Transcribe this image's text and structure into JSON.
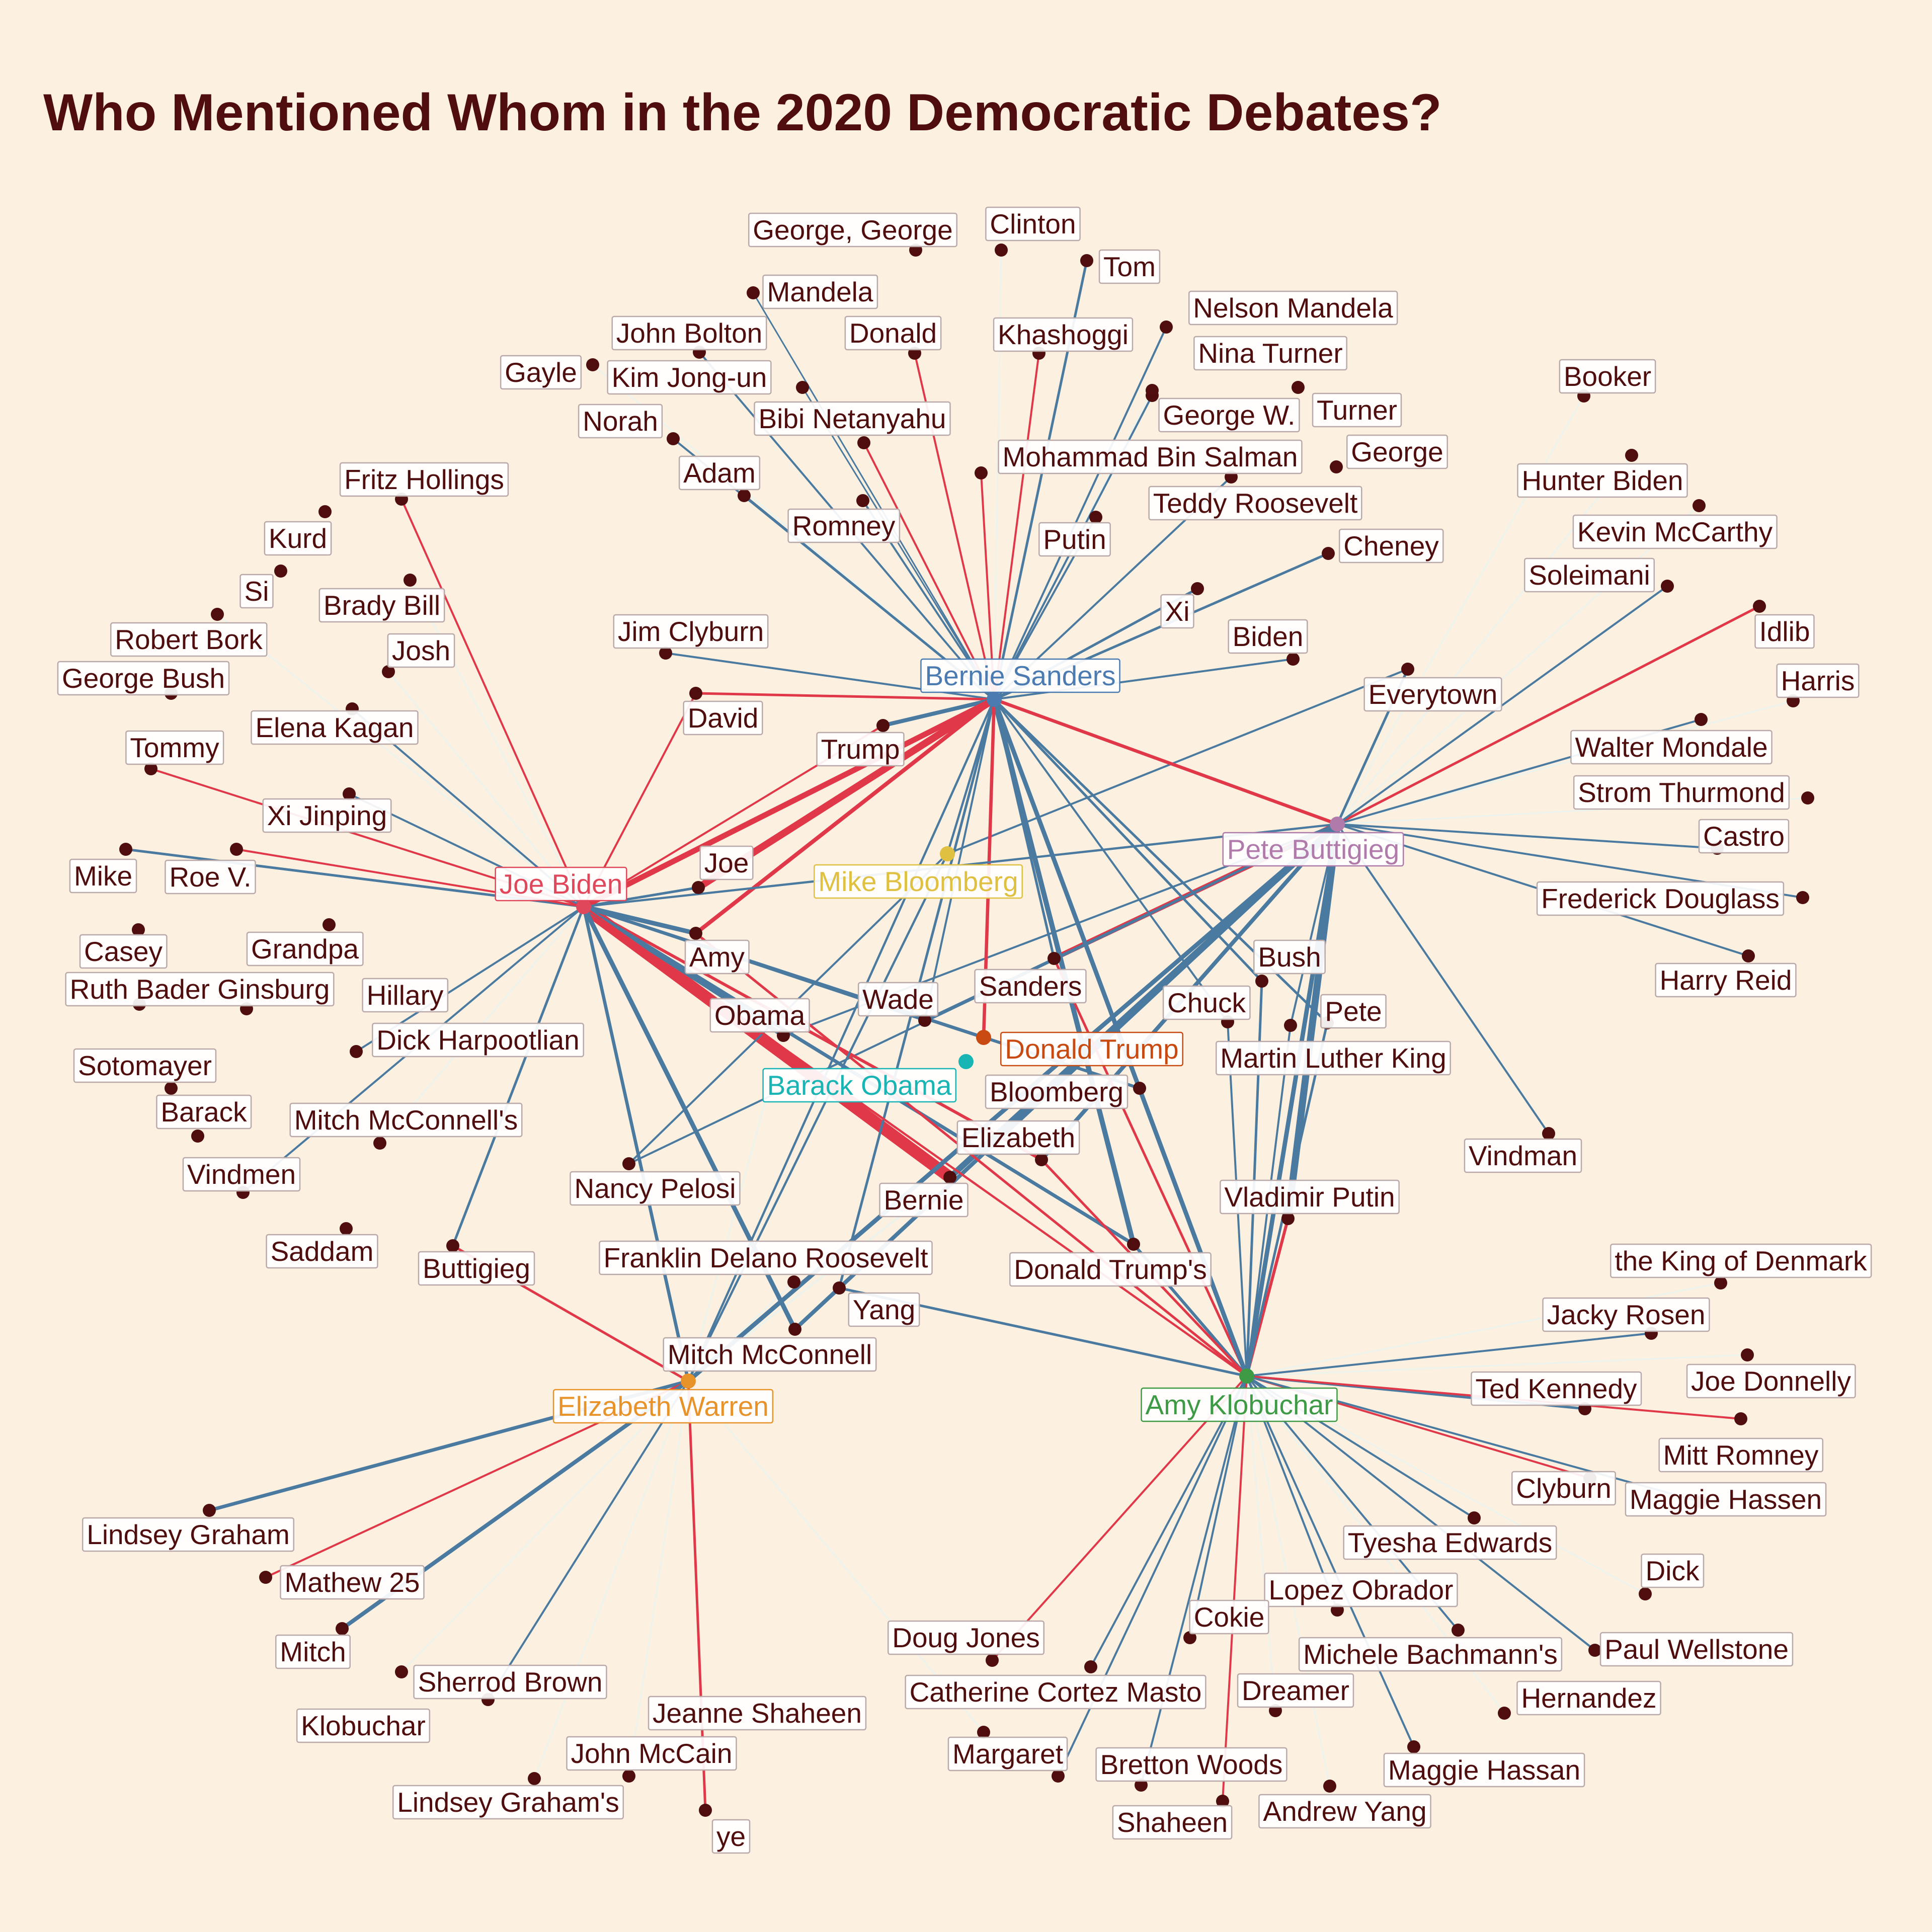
{
  "title": "Who Mentioned Whom in the 2020 Democratic Debates?",
  "colors": {
    "background": "#fcf0e0",
    "title": "#4f0d0d",
    "node": "#4f0d0d",
    "edge_blue": "#4a7a9f",
    "edge_red": "#e03848",
    "edge_faint": "#eaf4ee",
    "label_text": "#4f0d0d"
  },
  "candidates": [
    {
      "id": "sanders",
      "name": "Bernie Sanders",
      "color": "#4b7bb0"
    },
    {
      "id": "biden",
      "name": "Joe Biden",
      "color": "#e0475a"
    },
    {
      "id": "buttigieg",
      "name": "Pete Buttigieg",
      "color": "#b07aaa"
    },
    {
      "id": "bloomberg",
      "name": "Mike Bloomberg",
      "color": "#e0c040"
    },
    {
      "id": "obama",
      "name": "Barack Obama",
      "color": "#19b4b4"
    },
    {
      "id": "trump",
      "name": "Donald Trump",
      "color": "#c84a10"
    },
    {
      "id": "warren",
      "name": "Elizabeth Warren",
      "color": "#e8922a"
    },
    {
      "id": "klobuchar",
      "name": "Amy Klobuchar",
      "color": "#3e9a45"
    }
  ],
  "mentions": [
    {
      "id": "george_george",
      "name": "George, George"
    },
    {
      "id": "clinton",
      "name": "Clinton"
    },
    {
      "id": "tom",
      "name": "Tom"
    },
    {
      "id": "mandela",
      "name": "Mandela"
    },
    {
      "id": "nelson_mandela",
      "name": "Nelson Mandela"
    },
    {
      "id": "john_bolton",
      "name": "John Bolton"
    },
    {
      "id": "donald",
      "name": "Donald"
    },
    {
      "id": "khashoggi",
      "name": "Khashoggi"
    },
    {
      "id": "nina_turner",
      "name": "Nina Turner"
    },
    {
      "id": "gayle",
      "name": "Gayle"
    },
    {
      "id": "kim_jong_un",
      "name": "Kim Jong-un"
    },
    {
      "id": "george_w",
      "name": "George W."
    },
    {
      "id": "turner",
      "name": "Turner"
    },
    {
      "id": "booker",
      "name": "Booker"
    },
    {
      "id": "norah",
      "name": "Norah"
    },
    {
      "id": "bibi",
      "name": "Bibi Netanyahu"
    },
    {
      "id": "mbs",
      "name": "Mohammad Bin Salman"
    },
    {
      "id": "george",
      "name": "George"
    },
    {
      "id": "adam",
      "name": "Adam"
    },
    {
      "id": "fritz",
      "name": "Fritz Hollings"
    },
    {
      "id": "hunter",
      "name": "Hunter Biden"
    },
    {
      "id": "teddy",
      "name": "Teddy Roosevelt"
    },
    {
      "id": "romney",
      "name": "Romney"
    },
    {
      "id": "kurd",
      "name": "Kurd"
    },
    {
      "id": "putin",
      "name": "Putin"
    },
    {
      "id": "kevin",
      "name": "Kevin McCarthy"
    },
    {
      "id": "cheney",
      "name": "Cheney"
    },
    {
      "id": "si",
      "name": "Si"
    },
    {
      "id": "soleimani",
      "name": "Soleimani"
    },
    {
      "id": "brady",
      "name": "Brady Bill"
    },
    {
      "id": "xi",
      "name": "Xi"
    },
    {
      "id": "idlib",
      "name": "Idlib"
    },
    {
      "id": "robert_bork",
      "name": "Robert Bork"
    },
    {
      "id": "jim_clyburn",
      "name": "Jim Clyburn"
    },
    {
      "id": "biden_m",
      "name": "Biden"
    },
    {
      "id": "josh",
      "name": "Josh"
    },
    {
      "id": "george_bush",
      "name": "George Bush"
    },
    {
      "id": "everytown",
      "name": "Everytown"
    },
    {
      "id": "harris",
      "name": "Harris"
    },
    {
      "id": "david",
      "name": "David"
    },
    {
      "id": "elena",
      "name": "Elena Kagan"
    },
    {
      "id": "walter",
      "name": "Walter Mondale"
    },
    {
      "id": "tommy",
      "name": "Tommy"
    },
    {
      "id": "trump_m",
      "name": "Trump"
    },
    {
      "id": "strom",
      "name": "Strom Thurmond"
    },
    {
      "id": "xi_jinping",
      "name": "Xi Jinping"
    },
    {
      "id": "castro",
      "name": "Castro"
    },
    {
      "id": "joe",
      "name": "Joe"
    },
    {
      "id": "mike",
      "name": "Mike"
    },
    {
      "id": "roe",
      "name": "Roe V."
    },
    {
      "id": "frederick",
      "name": "Frederick Douglass"
    },
    {
      "id": "casey",
      "name": "Casey"
    },
    {
      "id": "grandpa",
      "name": "Grandpa"
    },
    {
      "id": "amy",
      "name": "Amy"
    },
    {
      "id": "bush",
      "name": "Bush"
    },
    {
      "id": "harry_reid",
      "name": "Harry Reid"
    },
    {
      "id": "sanders_m",
      "name": "Sanders"
    },
    {
      "id": "rbg",
      "name": "Ruth Bader Ginsburg"
    },
    {
      "id": "hillary",
      "name": "Hillary"
    },
    {
      "id": "wade",
      "name": "Wade"
    },
    {
      "id": "chuck",
      "name": "Chuck"
    },
    {
      "id": "pete",
      "name": "Pete"
    },
    {
      "id": "obama_m",
      "name": "Obama"
    },
    {
      "id": "dick_h",
      "name": "Dick Harpootlian"
    },
    {
      "id": "mlk",
      "name": "Martin Luther King"
    },
    {
      "id": "sotomayer",
      "name": "Sotomayer"
    },
    {
      "id": "bloomberg_m",
      "name": "Bloomberg"
    },
    {
      "id": "barack",
      "name": "Barack"
    },
    {
      "id": "mcconnells",
      "name": "Mitch McConnell's"
    },
    {
      "id": "elizabeth",
      "name": "Elizabeth"
    },
    {
      "id": "vindman",
      "name": "Vindman"
    },
    {
      "id": "vindmen",
      "name": "Vindmen"
    },
    {
      "id": "nancy",
      "name": "Nancy Pelosi"
    },
    {
      "id": "bernie",
      "name": "Bernie"
    },
    {
      "id": "vladimir",
      "name": "Vladimir Putin"
    },
    {
      "id": "saddam",
      "name": "Saddam"
    },
    {
      "id": "buttigieg_m",
      "name": "Buttigieg"
    },
    {
      "id": "fdr",
      "name": "Franklin Delano Roosevelt"
    },
    {
      "id": "trumps",
      "name": "Donald Trump's"
    },
    {
      "id": "king_denmark",
      "name": "the King of Denmark"
    },
    {
      "id": "yang",
      "name": "Yang"
    },
    {
      "id": "jacky",
      "name": "Jacky Rosen"
    },
    {
      "id": "mcconnell",
      "name": "Mitch McConnell"
    },
    {
      "id": "ted",
      "name": "Ted Kennedy"
    },
    {
      "id": "joe_donnelly",
      "name": "Joe Donnelly"
    },
    {
      "id": "mitt",
      "name": "Mitt Romney"
    },
    {
      "id": "clyburn",
      "name": "Clyburn"
    },
    {
      "id": "maggie_hassen",
      "name": "Maggie Hassen"
    },
    {
      "id": "lindsey",
      "name": "Lindsey Graham"
    },
    {
      "id": "tyesha",
      "name": "Tyesha Edwards"
    },
    {
      "id": "mathew",
      "name": "Mathew 25"
    },
    {
      "id": "dick",
      "name": "Dick"
    },
    {
      "id": "lopez",
      "name": "Lopez Obrador"
    },
    {
      "id": "cokie",
      "name": "Cokie"
    },
    {
      "id": "mitch",
      "name": "Mitch"
    },
    {
      "id": "doug",
      "name": "Doug Jones"
    },
    {
      "id": "bachmann",
      "name": "Michele Bachmann's"
    },
    {
      "id": "wellstone",
      "name": "Paul Wellstone"
    },
    {
      "id": "sherrod",
      "name": "Sherrod Brown"
    },
    {
      "id": "ccm",
      "name": "Catherine Cortez Masto"
    },
    {
      "id": "dreamer",
      "name": "Dreamer"
    },
    {
      "id": "klobuchar_m",
      "name": "Klobuchar"
    },
    {
      "id": "jeanne",
      "name": "Jeanne Shaheen"
    },
    {
      "id": "hernandez",
      "name": "Hernandez"
    },
    {
      "id": "mccain",
      "name": "John McCain"
    },
    {
      "id": "margaret",
      "name": "Margaret"
    },
    {
      "id": "bretton",
      "name": "Bretton Woods"
    },
    {
      "id": "maggie_hassan",
      "name": "Maggie Hassan"
    },
    {
      "id": "lindseys",
      "name": "Lindsey Graham's"
    },
    {
      "id": "andrew_yang",
      "name": "Andrew Yang"
    },
    {
      "id": "shaheen",
      "name": "Shaheen"
    },
    {
      "id": "ye",
      "name": "ye"
    }
  ],
  "edges": [
    {
      "from": "sanders",
      "to": "biden",
      "kind": "red",
      "weight": 4
    },
    {
      "from": "sanders",
      "to": "buttigieg",
      "kind": "red",
      "weight": 3
    },
    {
      "from": "sanders",
      "to": "bloomberg",
      "kind": "blue",
      "weight": 2
    },
    {
      "from": "sanders",
      "to": "trump",
      "kind": "red",
      "weight": 3
    },
    {
      "from": "sanders",
      "to": "klobuchar",
      "kind": "blue",
      "weight": 3
    },
    {
      "from": "biden",
      "to": "sanders",
      "kind": "red",
      "weight": 5
    },
    {
      "from": "biden",
      "to": "warren",
      "kind": "blue",
      "weight": 3
    },
    {
      "from": "biden",
      "to": "trump",
      "kind": "blue",
      "weight": 3
    },
    {
      "from": "biden",
      "to": "klobuchar",
      "kind": "red",
      "weight": 2
    },
    {
      "from": "buttigieg",
      "to": "warren",
      "kind": "blue",
      "weight": 4
    },
    {
      "from": "buttigieg",
      "to": "biden",
      "kind": "blue",
      "weight": 2
    },
    {
      "from": "buttigieg",
      "to": "klobuchar",
      "kind": "blue",
      "weight": 4
    },
    {
      "from": "klobuchar",
      "to": "sanders",
      "kind": "blue",
      "weight": 4
    },
    {
      "from": "klobuchar",
      "to": "buttigieg",
      "kind": "blue",
      "weight": 3
    },
    {
      "from": "warren",
      "to": "sanders",
      "kind": "blue",
      "weight": 2
    },
    {
      "from": "warren",
      "to": "bloomberg",
      "kind": "blue",
      "weight": 2
    }
  ]
}
